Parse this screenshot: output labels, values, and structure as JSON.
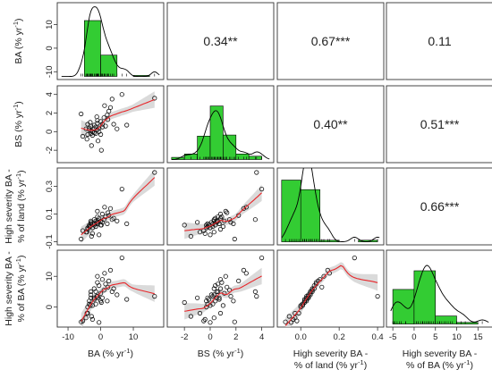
{
  "chart_data": {
    "type": "scatter",
    "variables": [
      {
        "id": "BA",
        "label_main": "BA",
        "label_unit": " (% yr",
        "label_sup": "-1",
        "label_close": ")",
        "label_line2": "",
        "range": [
          -12,
          18
        ],
        "xticks": [
          -10,
          0,
          10
        ],
        "yticks": [
          -10,
          0,
          10
        ]
      },
      {
        "id": "BS",
        "label_main": "BS",
        "label_unit": " (% yr",
        "label_sup": "-1",
        "label_close": ")",
        "label_line2": "",
        "range": [
          -3,
          4.6
        ],
        "xticks": [
          -2,
          0,
          2,
          4
        ],
        "yticks": [
          -2,
          0,
          2,
          4
        ]
      },
      {
        "id": "HSL",
        "label_main": "High severity BA -",
        "label_unit": "",
        "label_sup": "",
        "label_close": "",
        "label_line2": "% of land",
        "label_line2_unit": " (% yr",
        "label_line2_sup": "-1",
        "label_line2_close": ")",
        "range": [
          -0.1,
          0.41
        ],
        "xticks": [
          0.0,
          0.2,
          0.4
        ],
        "yticks": [
          -0.1,
          0.1,
          0.3
        ],
        "xtick_labels": [
          "0.0",
          "0.2",
          "0.4"
        ],
        "ytick_labels": [
          "-0.1",
          "0.1",
          "0.3"
        ]
      },
      {
        "id": "HSBA",
        "label_main": "High severity BA -",
        "label_unit": "",
        "label_sup": "",
        "label_close": "",
        "label_line2": "% of BA",
        "label_line2_unit": " (% yr",
        "label_line2_sup": "-1",
        "label_line2_close": ")",
        "range": [
          -5.5,
          17.5
        ],
        "xticks": [
          -5,
          0,
          5,
          10,
          15
        ],
        "yticks": [
          0,
          10
        ],
        "xtick_labels": [
          "-5",
          "0",
          "5",
          "10",
          "15"
        ]
      }
    ],
    "correlations": [
      {
        "row": 0,
        "col": 1,
        "text": "0.34**"
      },
      {
        "row": 0,
        "col": 2,
        "text": "0.67***"
      },
      {
        "row": 0,
        "col": 3,
        "text": "0.11"
      },
      {
        "row": 1,
        "col": 2,
        "text": "0.40**"
      },
      {
        "row": 1,
        "col": 3,
        "text": "0.51***"
      },
      {
        "row": 2,
        "col": 3,
        "text": "0.66***"
      }
    ],
    "histograms": [
      {
        "var": 0,
        "breaks": [
          -10,
          -5,
          0,
          5,
          10,
          15
        ],
        "density": [
          0.0,
          0.105,
          0.04,
          0.0,
          0.002
        ],
        "dmax": 0.13
      },
      {
        "var": 1,
        "breaks": [
          -3,
          -2,
          -1,
          0,
          1,
          2,
          3,
          4
        ],
        "density": [
          0.02,
          0.05,
          0.21,
          0.48,
          0.22,
          0.05,
          0.03
        ],
        "dmax": 0.62
      },
      {
        "var": 2,
        "breaks": [
          -0.1,
          0.0,
          0.1,
          0.2,
          0.3,
          0.4
        ],
        "density": [
          5.8,
          4.9,
          0.15,
          0.0,
          0.15
        ],
        "dmax": 6.5
      },
      {
        "var": 3,
        "breaks": [
          -5,
          0,
          5,
          10,
          15
        ],
        "density": [
          0.065,
          0.1,
          0.015,
          0.003
        ],
        "dmax": 0.13
      }
    ],
    "points": {
      "BA": [
        -5.5,
        -4.5,
        -4,
        -4,
        -3.5,
        -3.5,
        -3,
        -3,
        -3,
        -2.5,
        -2.5,
        -2,
        -2,
        -2,
        -1.5,
        -1.5,
        -1,
        -1,
        -1,
        -0.5,
        -0.5,
        0,
        0,
        0.5,
        0.5,
        1,
        1.5,
        2,
        2.5,
        3,
        3.5,
        4,
        5,
        6.5,
        8,
        -2.8,
        -1.2,
        0.2,
        1.2,
        -4.2,
        -3.2,
        -0.8,
        2.2,
        16.5,
        -6
      ],
      "BS": [
        -0.5,
        0.3,
        0.8,
        -0.3,
        0.2,
        0.4,
        -0.2,
        0.1,
        0.6,
        -0.4,
        0.0,
        -0.1,
        0.3,
        0.7,
        0.5,
        -0.2,
        0.2,
        0.9,
        1.2,
        0.0,
        0.4,
        -0.3,
        1.1,
        0.8,
        0.5,
        1.5,
        0.6,
        1.8,
        2.2,
        2.6,
        3.5,
        0.8,
        0.3,
        4.0,
        0.7,
        -1.5,
        1.6,
        -2.0,
        2.8,
        -0.8,
        1.0,
        -1.0,
        1.3,
        3.6,
        1.9
      ],
      "HSL": [
        -0.02,
        -0.03,
        -0.01,
        0.0,
        0.01,
        0.02,
        0.03,
        0.04,
        0.05,
        -0.04,
        0.0,
        0.02,
        0.06,
        0.03,
        0.05,
        0.01,
        0.03,
        0.08,
        0.12,
        -0.05,
        0.07,
        0.02,
        0.05,
        0.1,
        0.04,
        0.06,
        0.08,
        0.03,
        0.09,
        0.14,
        0.06,
        0.07,
        0.05,
        0.28,
        0.03,
        -0.06,
        0.04,
        0.02,
        0.15,
        -0.03,
        0.01,
        0.04,
        0.11,
        0.4,
        -0.08
      ],
      "HSBA": [
        -4.5,
        -3.5,
        -2,
        0,
        1,
        2,
        3,
        4,
        5,
        -4,
        0.5,
        2.5,
        6,
        3,
        5,
        1,
        3.5,
        8,
        10,
        -5,
        7,
        2,
        4.5,
        9,
        3,
        5.5,
        7.5,
        2,
        8.5,
        12,
        5,
        6,
        4,
        16,
        2.5,
        -3,
        3.5,
        1.5,
        11,
        -2,
        0.5,
        3,
        6.5,
        3.5,
        -4.8
      ]
    }
  }
}
